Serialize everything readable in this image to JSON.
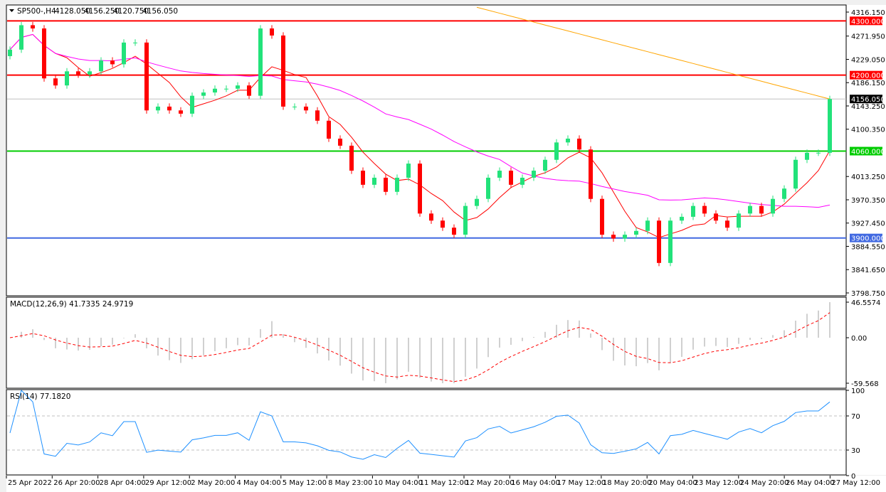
{
  "header": {
    "symbol": "SP500-,H4",
    "open": "4128.050",
    "high": "4156.250",
    "low": "4120.750",
    "close": "4156.050"
  },
  "colors": {
    "bull": "#22e27a",
    "bear": "#ff0000",
    "ma_fast": "#ff0000",
    "ma_mid": "#ff00ff",
    "ma_long": "#ffa500",
    "macd_hist": "#c0c0c0",
    "macd_signal": "#ff0000",
    "rsi": "#1e90ff",
    "level_red": "#ff0000",
    "level_green": "#00cc00",
    "level_blue": "#4169e1",
    "current_price": "#000000"
  },
  "price_axis": {
    "ticks": [
      "4316.150",
      "4271.950",
      "4229.050",
      "4186.150",
      "4143.250",
      "4100.350",
      "4013.250",
      "3970.350",
      "3927.450",
      "3884.550",
      "3841.650",
      "3798.750"
    ],
    "range": [
      3798.75,
      4316.15
    ]
  },
  "levels": [
    {
      "value": 4300,
      "label": "4300.000",
      "color": "level_red"
    },
    {
      "value": 4200,
      "label": "4200.000",
      "color": "level_red"
    },
    {
      "value": 4060,
      "label": "4060.000",
      "color": "level_green"
    },
    {
      "value": 3900,
      "label": "3900.000",
      "color": "level_blue"
    }
  ],
  "current_price": {
    "value": 4156.05,
    "label": "4156.050"
  },
  "time_axis": [
    "25 Apr 2022",
    "26 Apr 20:00",
    "28 Apr 04:00",
    "29 Apr 12:00",
    "2 May 20:00",
    "4 May 04:00",
    "5 May 12:00",
    "8 May 23:00",
    "10 May 04:00",
    "11 May 12:00",
    "12 May 20:00",
    "16 May 04:00",
    "17 May 12:00",
    "18 May 20:00",
    "20 May 04:00",
    "23 May 12:00",
    "24 May 20:00",
    "26 May 04:00",
    "27 May 12:00"
  ],
  "macd": {
    "label": "MACD(12,26,9) 41.7335 24.9719",
    "ticks": [
      "46.5574",
      "0.00",
      "-59.568"
    ],
    "range": [
      -59.568,
      46.5574
    ]
  },
  "rsi": {
    "label": "RSI(14) 77.1820",
    "ticks": [
      "100",
      "70",
      "30",
      "0"
    ],
    "levels": [
      70,
      30
    ]
  },
  "chart_data": {
    "type": "candlestick",
    "title": "SP500-,H4",
    "ylim": [
      3798.75,
      4316.15
    ],
    "first_open": 4235,
    "closes": [
      4247,
      4292,
      4286,
      4194,
      4181,
      4207,
      4201,
      4207,
      4227,
      4220,
      4260,
      4260,
      4135,
      4142,
      4135,
      4129,
      4162,
      4168,
      4175,
      4175,
      4181,
      4162,
      4286,
      4273,
      4142,
      4142,
      4135,
      4116,
      4083,
      4070,
      4024,
      3998,
      4011,
      3985,
      4011,
      4037,
      3945,
      3932,
      3919,
      3906,
      3959,
      3972,
      4011,
      4024,
      3998,
      4011,
      4024,
      4044,
      4076,
      4083,
      4063,
      3972,
      3906,
      3899,
      3906,
      3913,
      3932,
      3854,
      3932,
      3939,
      3959,
      3945,
      3932,
      3919,
      3945,
      3959,
      3945,
      3972,
      3991,
      4044,
      4057,
      4057,
      4156
    ],
    "ma_long": {
      "start": 4325,
      "end": 4156
    }
  }
}
